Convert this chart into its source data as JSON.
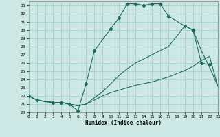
{
  "title": "",
  "xlabel": "Humidex (Indice chaleur)",
  "background_color": "#cde8e4",
  "grid_color": "#9cccc4",
  "line_color": "#1a6b5a",
  "xlim": [
    0,
    23
  ],
  "ylim": [
    20,
    33.5
  ],
  "xtick_labels": [
    "0",
    "1",
    "2",
    "3",
    "4",
    "5",
    "6",
    "7",
    "8",
    "9",
    "10",
    "11",
    "12",
    "13",
    "14",
    "15",
    "16",
    "17",
    "18",
    "19",
    "20",
    "21",
    "22",
    "23"
  ],
  "ytick_labels": [
    "20",
    "21",
    "22",
    "23",
    "24",
    "25",
    "26",
    "27",
    "28",
    "29",
    "30",
    "31",
    "32",
    "33"
  ],
  "curve1_x": [
    0,
    1,
    2,
    3,
    4,
    5,
    6,
    7,
    8,
    9,
    10,
    11,
    12,
    13,
    14,
    15,
    16,
    17,
    18,
    19,
    20,
    21,
    22,
    23
  ],
  "curve1_y": [
    22.0,
    21.5,
    21.3,
    21.2,
    21.2,
    21.0,
    20.8,
    21.0,
    21.5,
    22.0,
    22.4,
    22.7,
    23.0,
    23.3,
    23.5,
    23.7,
    24.0,
    24.3,
    24.7,
    25.1,
    25.6,
    26.3,
    26.8,
    23.2
  ],
  "curve2_x": [
    0,
    1,
    2,
    3,
    4,
    5,
    6,
    7,
    8,
    9,
    10,
    11,
    12,
    13,
    14,
    15,
    16,
    17,
    19,
    20,
    21,
    22,
    23
  ],
  "curve2_y": [
    22.0,
    21.5,
    21.3,
    21.2,
    21.2,
    21.0,
    20.8,
    21.0,
    21.8,
    22.5,
    23.5,
    24.5,
    25.3,
    26.0,
    26.5,
    27.0,
    27.5,
    28.0,
    30.5,
    30.0,
    27.5,
    25.5,
    23.2
  ],
  "curve3_x": [
    0,
    1,
    3,
    4,
    5,
    6,
    7,
    8,
    10,
    11,
    12,
    13,
    14,
    15,
    16,
    17,
    19,
    20,
    21,
    22
  ],
  "curve3_y": [
    22.0,
    21.5,
    21.2,
    21.2,
    21.0,
    20.2,
    23.5,
    27.5,
    30.2,
    31.5,
    33.2,
    33.2,
    33.0,
    33.2,
    33.2,
    31.7,
    30.5,
    30.0,
    26.0,
    25.8
  ],
  "marker_x": [
    0,
    1,
    3,
    4,
    5,
    6,
    7,
    8,
    10,
    11,
    12,
    13,
    14,
    15,
    16,
    17,
    19,
    20,
    21,
    22
  ],
  "marker_y": [
    22.0,
    21.5,
    21.2,
    21.2,
    21.0,
    20.2,
    23.5,
    27.5,
    30.2,
    31.5,
    33.2,
    33.2,
    33.0,
    33.2,
    33.2,
    31.7,
    30.5,
    30.0,
    26.0,
    25.8
  ]
}
